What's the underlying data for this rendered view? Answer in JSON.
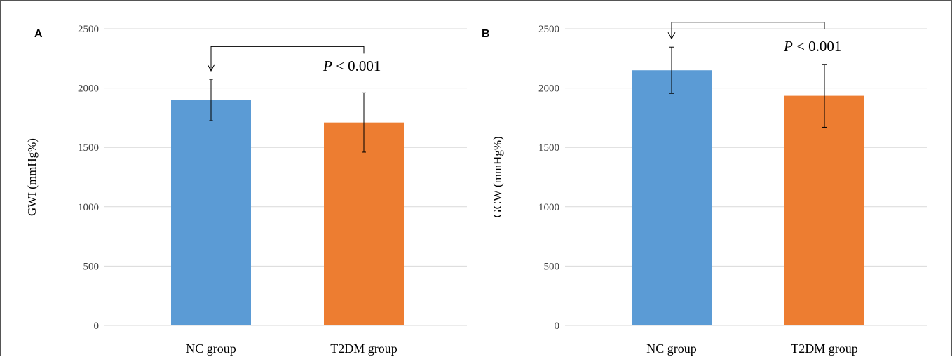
{
  "chart_data": [
    {
      "panel_label": "A",
      "type": "bar",
      "categories": [
        "NC group",
        "T2DM group"
      ],
      "values": [
        1900,
        1710
      ],
      "error": [
        175,
        250
      ],
      "colors": [
        "#5b9bd5",
        "#ed7d31"
      ],
      "ylabel": "GWI (mmHg%)",
      "xlabel": "",
      "ylim": [
        0,
        2500
      ],
      "yticks": [
        0,
        500,
        1000,
        1500,
        2000,
        2500
      ],
      "grid": true,
      "annotation": {
        "text_italic": "P",
        "text_rest": " < 0.001",
        "bracket_top": 2350
      }
    },
    {
      "panel_label": "B",
      "type": "bar",
      "categories": [
        "NC group",
        "T2DM group"
      ],
      "values": [
        2150,
        1935
      ],
      "error": [
        195,
        265
      ],
      "colors": [
        "#5b9bd5",
        "#ed7d31"
      ],
      "ylabel": "GCW (mmHg%)",
      "xlabel": "",
      "ylim": [
        0,
        2500
      ],
      "yticks": [
        0,
        500,
        1000,
        1500,
        2000,
        2500
      ],
      "grid": true,
      "annotation": {
        "text_italic": "P",
        "text_rest": " < 0.001",
        "bracket_top": 2555
      }
    }
  ]
}
